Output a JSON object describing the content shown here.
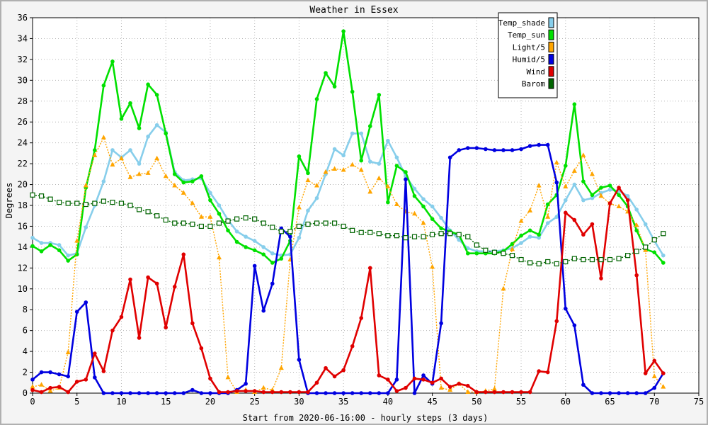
{
  "chart_data": {
    "type": "line",
    "title": "Weather in Essex",
    "xlabel": "Start from 2020-06-16:00 - hourly steps (3 days)",
    "ylabel": "Degrees",
    "xlim": [
      0,
      75
    ],
    "ylim": [
      0,
      36
    ],
    "xticks": [
      0,
      5,
      10,
      15,
      20,
      25,
      30,
      35,
      40,
      45,
      50,
      55,
      60,
      65,
      70,
      75
    ],
    "yticks": [
      0,
      2,
      4,
      6,
      8,
      10,
      12,
      14,
      16,
      18,
      20,
      22,
      24,
      26,
      28,
      30,
      32,
      34,
      36
    ],
    "grid": true,
    "legend_position": "top-right",
    "series": [
      {
        "name": "Temp_shade",
        "color": "#87ceeb",
        "style": "solid-dot",
        "values": [
          14.9,
          14.4,
          14.4,
          14.2,
          13.2,
          13.4,
          15.9,
          18.0,
          20.3,
          23.3,
          22.6,
          23.3,
          22.0,
          24.6,
          25.7,
          25.0,
          21.2,
          20.4,
          20.5,
          20.6,
          19.2,
          18.0,
          16.6,
          15.5,
          15.0,
          14.6,
          14.0,
          13.4,
          13.2,
          13.3,
          14.9,
          17.5,
          18.7,
          21.0,
          23.4,
          22.8,
          24.9,
          24.9,
          22.2,
          22.0,
          24.2,
          22.6,
          20.8,
          19.6,
          18.6,
          17.9,
          16.8,
          15.6,
          14.7,
          13.9,
          13.6,
          13.6,
          13.6,
          13.7,
          13.9,
          14.4,
          15.0,
          14.9,
          16.3,
          16.9,
          18.5,
          20.0,
          18.5,
          18.7,
          19.2,
          19.5,
          19.4,
          18.9,
          17.6,
          16.2,
          14.6,
          13.2
        ]
      },
      {
        "name": "Temp_sun",
        "color": "#00e000",
        "style": "solid-dot",
        "values": [
          14.1,
          13.6,
          14.2,
          13.7,
          12.7,
          13.3,
          19.7,
          23.3,
          29.5,
          31.8,
          26.3,
          27.8,
          25.4,
          29.6,
          28.6,
          24.9,
          21.0,
          20.2,
          20.3,
          20.8,
          18.5,
          17.2,
          15.6,
          14.5,
          14.0,
          13.7,
          13.3,
          12.5,
          12.9,
          14.6,
          22.7,
          21.1,
          28.2,
          30.7,
          29.4,
          34.7,
          28.9,
          22.3,
          25.6,
          28.6,
          18.3,
          21.8,
          21.2,
          18.9,
          17.9,
          16.7,
          15.8,
          15.5,
          15.2,
          13.4,
          13.4,
          13.4,
          13.4,
          13.6,
          14.3,
          15.1,
          15.6,
          15.2,
          18.1,
          19.0,
          21.8,
          27.7,
          20.3,
          19.0,
          19.7,
          19.9,
          19.0,
          17.9,
          15.6,
          13.8,
          13.5,
          12.5
        ]
      },
      {
        "name": "Light/5",
        "color": "#ffa500",
        "style": "dotted-triangle",
        "values": [
          0.6,
          0.8,
          0.2,
          0.5,
          3.9,
          14.6,
          19.9,
          22.8,
          24.5,
          21.9,
          22.5,
          20.7,
          21.0,
          21.1,
          22.5,
          20.8,
          19.9,
          19.2,
          18.2,
          16.9,
          16.9,
          13.0,
          1.5,
          0.1,
          0.3,
          0.1,
          0.5,
          0.3,
          2.4,
          12.8,
          17.8,
          20.4,
          19.9,
          21.2,
          21.5,
          21.4,
          21.9,
          21.4,
          19.3,
          20.6,
          19.8,
          18.1,
          17.4,
          17.2,
          16.3,
          12.1,
          0.5,
          0.3,
          0.9,
          0.1,
          0.1,
          0.2,
          0.4,
          10.0,
          13.8,
          16.5,
          17.5,
          19.9,
          16.9,
          22.1,
          19.8,
          21.3,
          22.8,
          21.0,
          18.9,
          18.2,
          17.9,
          17.4,
          16.1,
          13.7,
          1.6,
          0.6
        ]
      },
      {
        "name": "Humid/5",
        "color": "#0000e0",
        "style": "solid-dot",
        "values": [
          1.3,
          2.0,
          2.0,
          1.8,
          1.6,
          7.8,
          8.7,
          1.5,
          0.0,
          0.0,
          0.0,
          0.0,
          0.0,
          0.0,
          0.0,
          0.0,
          0.0,
          0.0,
          0.3,
          0.0,
          0.0,
          0.0,
          0.0,
          0.3,
          0.9,
          12.2,
          7.9,
          10.5,
          15.8,
          15.0,
          3.2,
          0.0,
          0.0,
          0.0,
          0.0,
          0.0,
          0.0,
          0.0,
          0.0,
          0.0,
          0.0,
          1.3,
          20.5,
          0.0,
          1.7,
          0.9,
          6.7,
          22.6,
          23.3,
          23.5,
          23.5,
          23.4,
          23.3,
          23.3,
          23.3,
          23.4,
          23.7,
          23.8,
          23.8,
          20.2,
          8.1,
          6.5,
          0.8,
          0.0,
          0.0,
          0.0,
          0.0,
          0.0,
          0.0,
          0.0,
          0.5,
          1.9
        ]
      },
      {
        "name": "Wind",
        "color": "#e00000",
        "style": "solid-dot",
        "values": [
          0.3,
          0.1,
          0.5,
          0.6,
          0.1,
          1.1,
          1.3,
          3.8,
          2.1,
          6.0,
          7.3,
          10.9,
          5.3,
          11.1,
          10.5,
          6.3,
          10.2,
          13.3,
          6.7,
          4.3,
          1.4,
          0.1,
          0.1,
          0.2,
          0.2,
          0.2,
          0.1,
          0.1,
          0.1,
          0.1,
          0.1,
          0.1,
          1.0,
          2.4,
          1.6,
          2.2,
          4.5,
          7.2,
          12.0,
          1.7,
          1.3,
          0.2,
          0.5,
          1.4,
          1.3,
          1.0,
          1.4,
          0.6,
          0.9,
          0.7,
          0.1,
          0.1,
          0.1,
          0.1,
          0.1,
          0.1,
          0.1,
          2.1,
          2.0,
          6.9,
          17.3,
          16.6,
          15.2,
          16.2,
          11.0,
          18.2,
          19.7,
          18.5,
          11.3,
          1.9,
          3.1,
          1.9
        ]
      },
      {
        "name": "Barom",
        "color": "#006400",
        "style": "dotted-square",
        "values": [
          19.0,
          18.9,
          18.6,
          18.3,
          18.2,
          18.2,
          18.1,
          18.2,
          18.4,
          18.3,
          18.2,
          18.0,
          17.6,
          17.4,
          17.0,
          16.6,
          16.3,
          16.3,
          16.2,
          16.0,
          16.0,
          16.3,
          16.5,
          16.7,
          16.8,
          16.7,
          16.3,
          15.9,
          15.5,
          15.5,
          16.0,
          16.2,
          16.3,
          16.3,
          16.3,
          16.0,
          15.6,
          15.4,
          15.4,
          15.3,
          15.1,
          15.1,
          14.9,
          15.0,
          15.0,
          15.2,
          15.3,
          15.3,
          15.2,
          15.0,
          14.2,
          13.7,
          13.5,
          13.4,
          13.2,
          12.8,
          12.5,
          12.4,
          12.6,
          12.4,
          12.6,
          12.9,
          12.8,
          12.8,
          12.8,
          12.8,
          12.9,
          13.2,
          13.6,
          14.0,
          14.7,
          15.3
        ]
      }
    ]
  }
}
